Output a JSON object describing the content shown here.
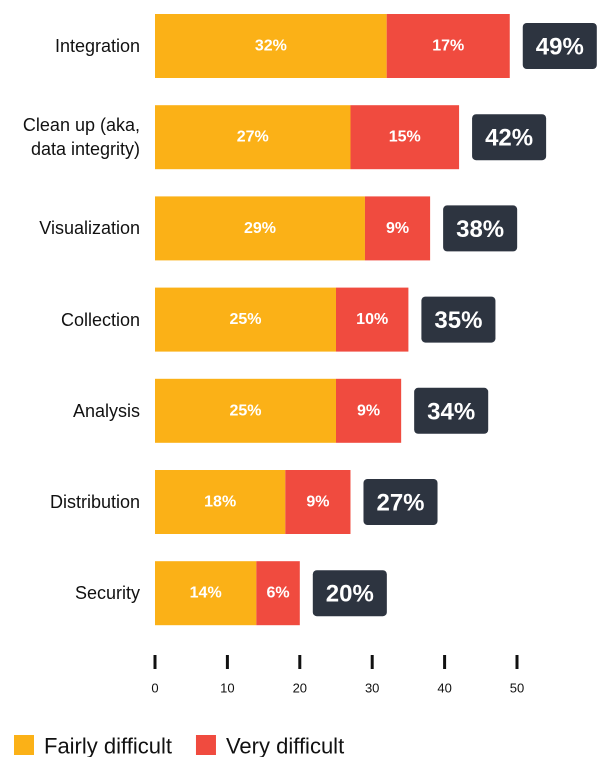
{
  "chart_data": {
    "type": "stacked-bar-horizontal",
    "categories": [
      "Integration",
      "Clean up (aka, data integrity)",
      "Visualization",
      "Collection",
      "Analysis",
      "Distribution",
      "Security"
    ],
    "series": [
      {
        "name": "Fairly difficult",
        "color": "#fbb117",
        "values": [
          32,
          27,
          29,
          25,
          25,
          18,
          14
        ],
        "value_labels": [
          "32%",
          "27%",
          "29%",
          "25%",
          "25%",
          "18%",
          "14%"
        ]
      },
      {
        "name": "Very difficult",
        "color": "#f04b3f",
        "values": [
          17,
          15,
          9,
          10,
          9,
          9,
          6
        ],
        "value_labels": [
          "17%",
          "15%",
          "9%",
          "10%",
          "9%",
          "9%",
          "6%"
        ]
      }
    ],
    "totals": [
      49,
      42,
      38,
      35,
      34,
      27,
      20
    ],
    "total_labels": [
      "49%",
      "42%",
      "38%",
      "35%",
      "34%",
      "27%",
      "20%"
    ],
    "total_color": "#2d3440",
    "xlim": [
      0,
      50
    ],
    "xticks": [
      0,
      10,
      20,
      30,
      40,
      50
    ],
    "legend": "bottom"
  }
}
